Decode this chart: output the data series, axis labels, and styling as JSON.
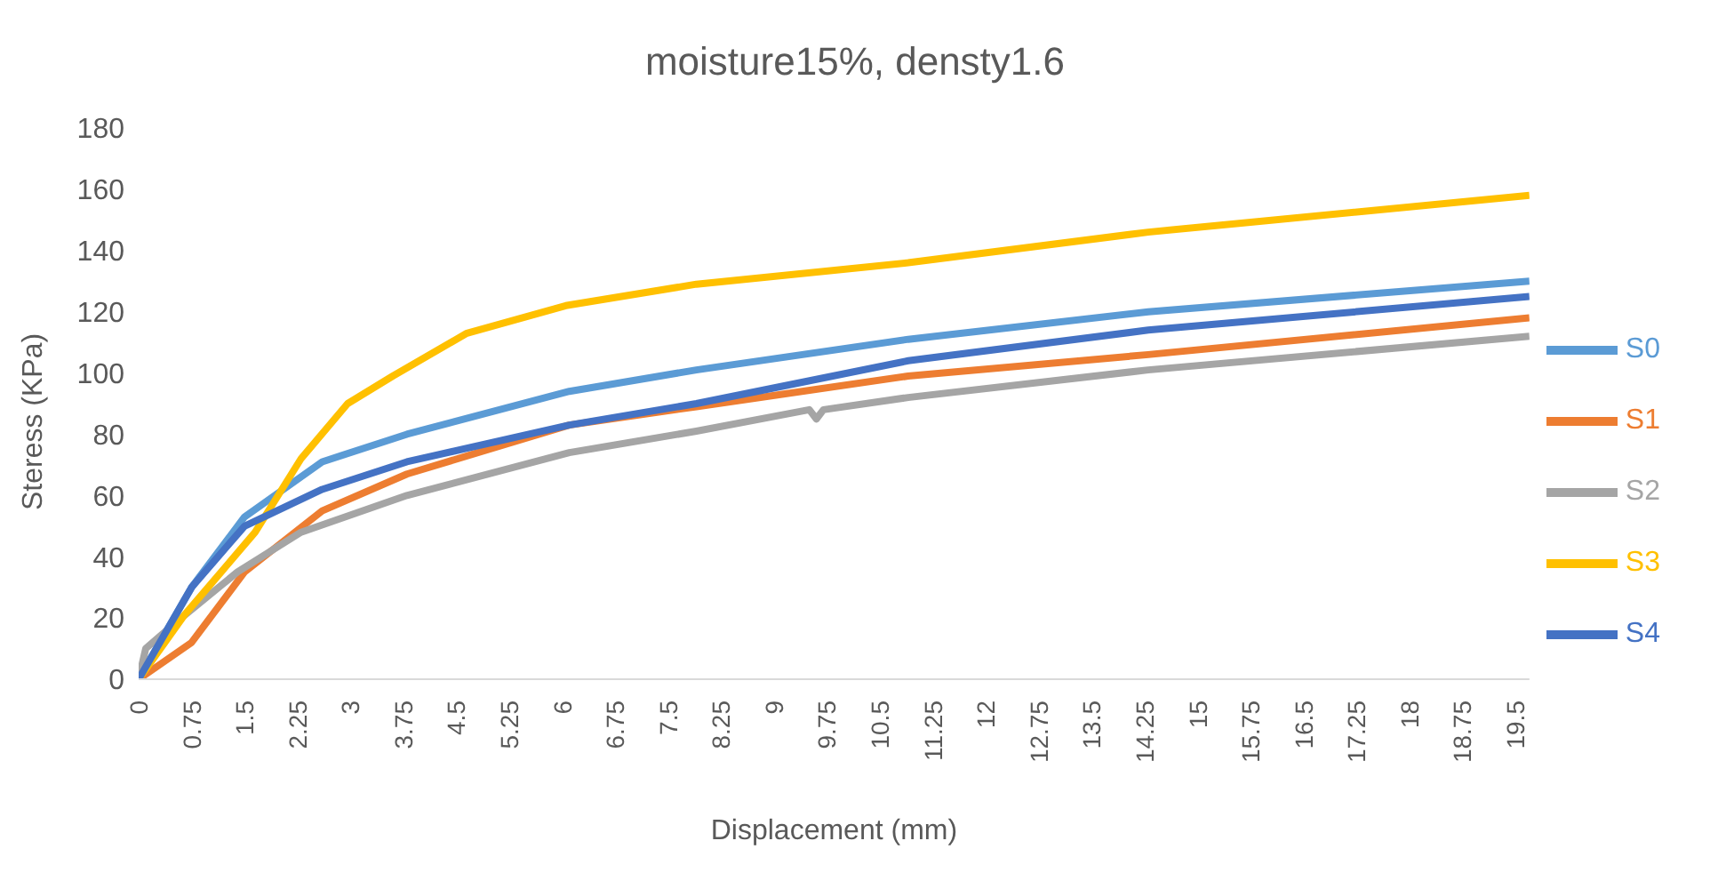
{
  "chart_data": {
    "type": "line",
    "title": "moisture15%, densty1.6",
    "xlabel": "Displacement (mm)",
    "ylabel": "Steress (KPa)",
    "xlim": [
      0,
      19.7
    ],
    "xticks": [
      0,
      0.75,
      1.5,
      2.25,
      3,
      3.75,
      4.5,
      5.25,
      6,
      6.75,
      7.5,
      8.25,
      9,
      9.75,
      10.5,
      11.25,
      12,
      12.75,
      13.5,
      14.25,
      15,
      15.75,
      16.5,
      17.25,
      18,
      18.75,
      19.5
    ],
    "ylim": [
      0,
      180
    ],
    "yticks": [
      0,
      20,
      40,
      60,
      80,
      100,
      120,
      140,
      160,
      180
    ],
    "grid": false,
    "legend": "right",
    "marker": "none",
    "line_style": "solid",
    "series": [
      {
        "name": "S0",
        "color": "#5b9bd5",
        "x": [
          0,
          0.75,
          1.5,
          2.6,
          3.8,
          6.1,
          7.9,
          10.9,
          14.3,
          19.7
        ],
        "values": [
          0,
          30,
          53,
          71,
          80,
          94,
          101,
          111,
          120,
          130
        ]
      },
      {
        "name": "S1",
        "color": "#ed7d31",
        "x": [
          0,
          0.75,
          1.5,
          2.6,
          3.8,
          6.1,
          7.9,
          10.9,
          14.3,
          19.7
        ],
        "values": [
          0,
          12,
          35,
          55,
          67,
          83,
          89,
          99,
          106,
          118
        ]
      },
      {
        "name": "S2",
        "color": "#a5a5a5",
        "x": [
          0,
          0.1,
          0.5,
          1.4,
          2.3,
          3.8,
          6.1,
          7.9,
          9.5,
          9.6,
          9.7,
          10.9,
          14.3,
          19.7
        ],
        "values": [
          0,
          10,
          18,
          35,
          48,
          60,
          74,
          81,
          88,
          85,
          88,
          92,
          101,
          112
        ]
      },
      {
        "name": "S3",
        "color": "#ffc000",
        "x": [
          0,
          0.65,
          1.65,
          2.3,
          2.96,
          3.6,
          4.65,
          6.05,
          7.9,
          10.9,
          14.3,
          19.7
        ],
        "values": [
          0,
          21,
          48,
          72,
          90,
          99,
          113,
          122,
          129,
          136,
          146,
          158
        ]
      },
      {
        "name": "S4",
        "color": "#4472c4",
        "x": [
          0,
          0.75,
          1.5,
          2.6,
          3.8,
          6.1,
          7.9,
          10.9,
          14.3,
          19.7
        ],
        "values": [
          0,
          30,
          50,
          62,
          71,
          83,
          90,
          104,
          114,
          125
        ]
      }
    ]
  }
}
